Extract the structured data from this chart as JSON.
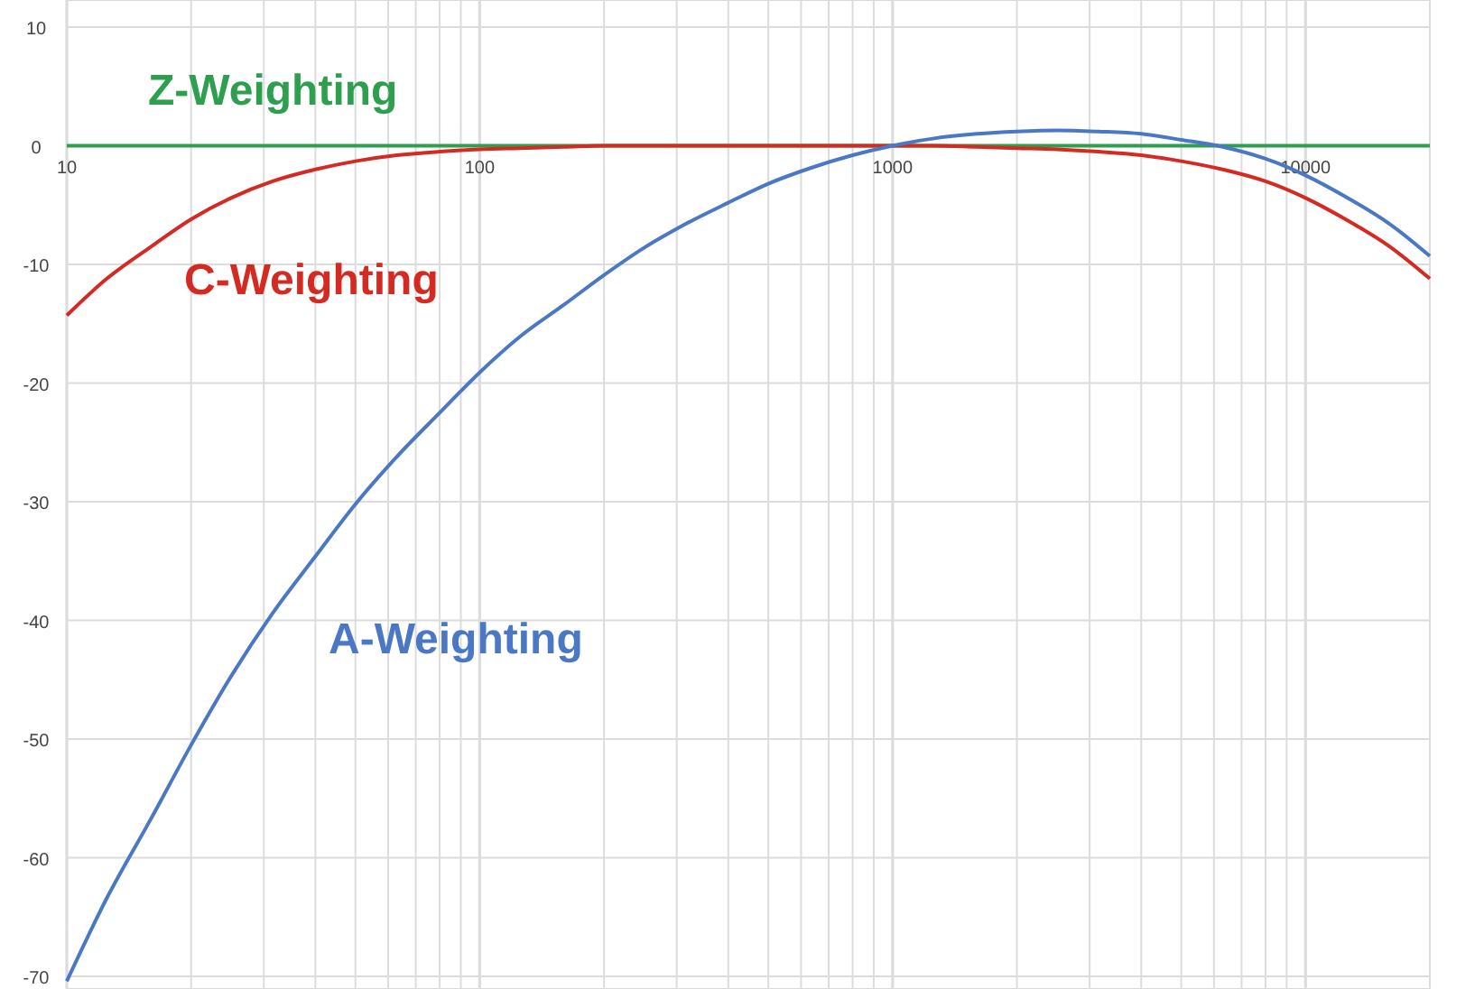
{
  "chart_data": {
    "type": "line",
    "log": "x",
    "grid": true,
    "marker": "none",
    "line_style": "solid",
    "x": [
      10,
      12.5,
      16,
      20,
      25,
      31.5,
      40,
      50,
      63,
      80,
      100,
      125,
      160,
      200,
      250,
      315,
      400,
      500,
      630,
      800,
      1000,
      1250,
      1600,
      2000,
      2500,
      3150,
      4000,
      5000,
      6300,
      8000,
      10000,
      12500,
      16000,
      20000
    ],
    "series": [
      {
        "name": "Z-Weighting",
        "color": "#2e9e4f",
        "values": [
          0,
          0,
          0,
          0,
          0,
          0,
          0,
          0,
          0,
          0,
          0,
          0,
          0,
          0,
          0,
          0,
          0,
          0,
          0,
          0,
          0,
          0,
          0,
          0,
          0,
          0,
          0,
          0,
          0,
          0,
          0,
          0,
          0,
          0
        ]
      },
      {
        "name": "C-Weighting",
        "color": "#d42a22",
        "values": [
          -14.3,
          -11.2,
          -8.5,
          -6.2,
          -4.4,
          -3.0,
          -2.0,
          -1.3,
          -0.8,
          -0.5,
          -0.3,
          -0.2,
          -0.1,
          0,
          0,
          0,
          0,
          0,
          0,
          0,
          0,
          0,
          -0.1,
          -0.2,
          -0.3,
          -0.5,
          -0.8,
          -1.3,
          -2.0,
          -3.0,
          -4.4,
          -6.2,
          -8.5,
          -11.2
        ]
      },
      {
        "name": "A-Weighting",
        "color": "#4a78c4",
        "values": [
          -70.4,
          -63.4,
          -56.7,
          -50.5,
          -44.7,
          -39.4,
          -34.6,
          -30.2,
          -26.2,
          -22.5,
          -19.1,
          -16.1,
          -13.4,
          -10.9,
          -8.6,
          -6.6,
          -4.8,
          -3.2,
          -1.9,
          -0.8,
          0,
          0.6,
          1.0,
          1.2,
          1.3,
          1.2,
          1.0,
          0.5,
          -0.1,
          -1.1,
          -2.5,
          -4.3,
          -6.6,
          -9.3
        ]
      }
    ],
    "xlim": [
      10,
      20000
    ],
    "ylim": [
      -71,
      10
    ],
    "xticks": [
      10,
      {
        "value": 20,
        "label": null
      },
      {
        "value": 30,
        "label": null
      },
      {
        "value": 40,
        "label": null
      },
      {
        "value": 50,
        "label": null
      },
      {
        "value": 60,
        "label": null
      },
      {
        "value": 70,
        "label": null
      },
      {
        "value": 80,
        "label": null
      },
      {
        "value": 90,
        "label": null
      },
      100,
      {
        "value": 200,
        "label": null
      },
      {
        "value": 300,
        "label": null
      },
      {
        "value": 400,
        "label": null
      },
      {
        "value": 500,
        "label": null
      },
      {
        "value": 600,
        "label": null
      },
      {
        "value": 700,
        "label": null
      },
      {
        "value": 800,
        "label": null
      },
      {
        "value": 900,
        "label": null
      },
      1000,
      {
        "value": 2000,
        "label": null
      },
      {
        "value": 3000,
        "label": null
      },
      {
        "value": 4000,
        "label": null
      },
      {
        "value": 5000,
        "label": null
      },
      {
        "value": 6000,
        "label": null
      },
      {
        "value": 7000,
        "label": null
      },
      {
        "value": 8000,
        "label": null
      },
      {
        "value": 9000,
        "label": null
      },
      10000,
      {
        "value": 20000,
        "label": null
      }
    ],
    "yticks": [
      10,
      0,
      -10,
      -20,
      -30,
      -40,
      -50,
      -60,
      -70
    ]
  }
}
